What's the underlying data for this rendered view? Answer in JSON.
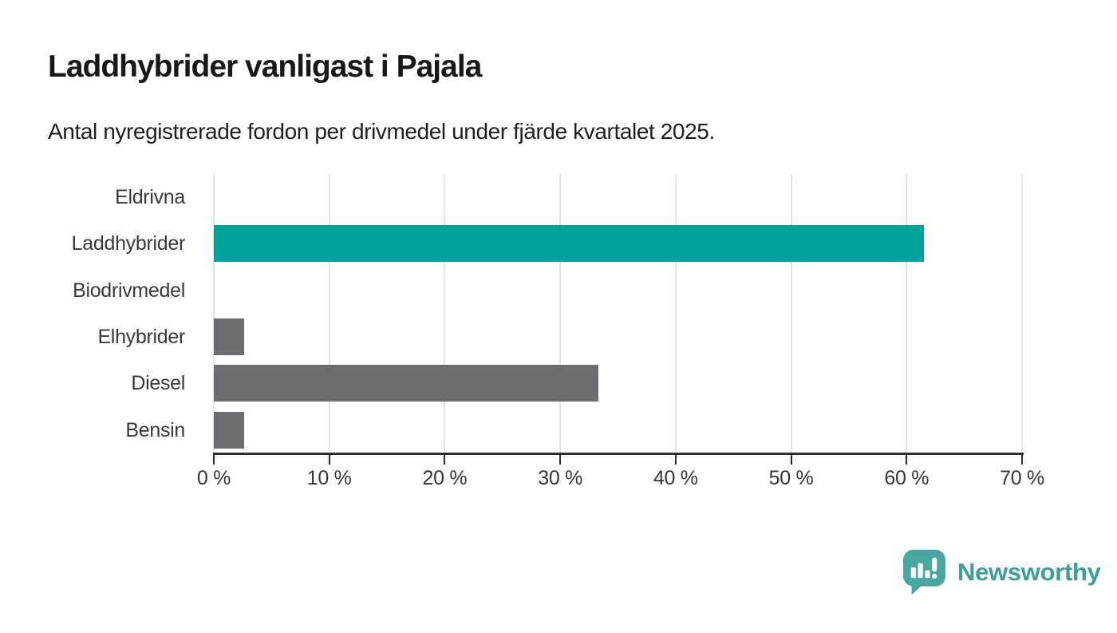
{
  "title": "Laddhybrider vanligast i Pajala",
  "subtitle": "Antal nyregistrerade fordon per drivmedel under fjärde kvartalet 2025.",
  "chart_data": {
    "type": "bar",
    "orientation": "horizontal",
    "title": "Laddhybrider vanligast i Pajala",
    "subtitle": "Antal nyregistrerade fordon per drivmedel under fjärde kvartalet 2025.",
    "categories": [
      "Eldrivna",
      "Laddhybrider",
      "Biodrivmedel",
      "Elhybrider",
      "Diesel",
      "Bensin"
    ],
    "values": [
      0,
      61.5,
      0,
      2.6,
      33.3,
      2.6
    ],
    "unit": "%",
    "xlim": [
      0,
      70
    ],
    "x_tick_values": [
      0,
      10,
      20,
      30,
      40,
      50,
      60,
      70
    ],
    "x_tick_labels": [
      "0 %",
      "10 %",
      "20 %",
      "30 %",
      "40 %",
      "50 %",
      "60 %",
      "70 %"
    ],
    "grid": "vertical-only",
    "legend": "none",
    "highlight_category": "Laddhybrider",
    "bar_colors": [
      "#6e6b71",
      "#00a39b",
      "#6e6b71",
      "#6e6b71",
      "#6e6b71",
      "#6e6b71"
    ]
  },
  "colors": {
    "accent_teal": "#00a39b",
    "bar_gray": "#6e6b71",
    "gridline": "#e4e4e4",
    "axis": "#2d2d2d",
    "text_dark": "#181818",
    "label_gray": "#3a3a3a",
    "logo_teal": "#4aa6a0",
    "brand_text_teal": "#3d9d97"
  },
  "footer": {
    "brand": "Newsworthy",
    "logo_icon": "newsworthy-speech-bubble-bar-chart-icon"
  }
}
